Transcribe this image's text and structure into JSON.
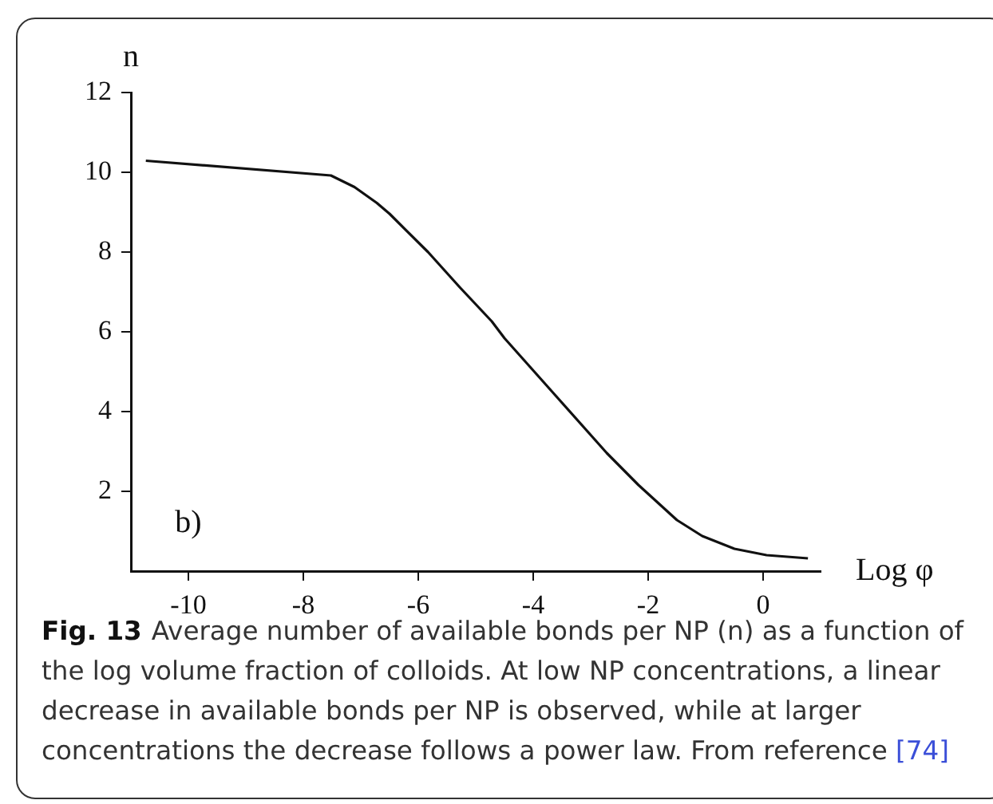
{
  "chart_data": {
    "type": "line",
    "xlabel": "Log φ",
    "ylabel": "n",
    "x": [
      -10.74,
      -7.52,
      -7.11,
      -6.72,
      -6.5,
      -5.83,
      -5.28,
      -4.72,
      -4.5,
      -3.61,
      -2.72,
      -2.17,
      -1.5,
      -1.06,
      -0.5,
      0.06,
      0.78
    ],
    "values": [
      10.29,
      9.92,
      9.63,
      9.23,
      8.96,
      8.0,
      7.12,
      6.26,
      5.84,
      4.4,
      2.96,
      2.16,
      1.28,
      0.88,
      0.56,
      0.4,
      0.32
    ],
    "color": "#111111",
    "marker": "none",
    "line_style": "solid",
    "xlim": [
      -11,
      1
    ],
    "xticks": [
      -10,
      -8,
      -6,
      -4,
      -2,
      0
    ],
    "ylim": [
      0,
      12
    ],
    "yticks": [
      2,
      4,
      6,
      8,
      10,
      12
    ],
    "grid": false,
    "legend": false,
    "annotations": [
      "b)",
      "Fig. 13",
      "Average number of available bonds per NP (n) as a function of the log volume fraction of colloids. At low NP concentrations, a linear decrease in available bonds per NP is observed, while at larger concentrations the decrease follows a power law. From reference [74]"
    ]
  }
}
